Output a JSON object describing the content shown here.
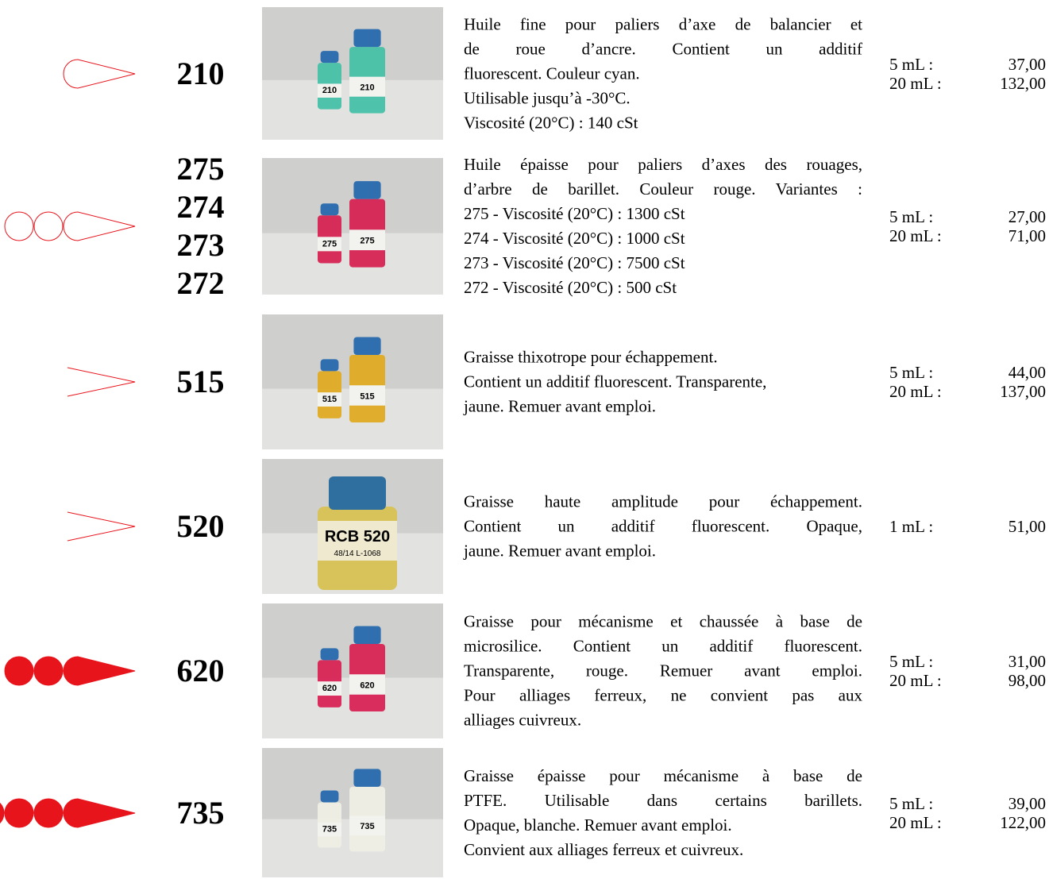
{
  "products": [
    {
      "codes": [
        "210"
      ],
      "photo_labels": [
        "210",
        "210"
      ],
      "description": [
        "Huile fine pour paliers d’axe de balancier et",
        "de roue d’ancre. Contient un additif",
        "fluorescent. Couleur cyan.",
        "Utilisable jusqu’à -30°C.",
        "Viscosité (20°C) : 140 cSt"
      ],
      "prices": [
        {
          "qty": "5 mL :",
          "price": "37,00"
        },
        {
          "qty": "20 mL :",
          "price": "132,00"
        }
      ]
    },
    {
      "codes": [
        "275",
        "274",
        "273",
        "272"
      ],
      "photo_labels": [
        "275",
        "275"
      ],
      "description": [
        "Huile épaisse pour paliers d’axes des rouages,",
        "d’arbre de barillet. Couleur rouge. Variantes :",
        "275 - Viscosité (20°C) : 1300 cSt",
        "274 - Viscosité (20°C) : 1000 cSt",
        "273 - Viscosité (20°C) : 7500 cSt",
        "272 - Viscosité (20°C) : 500 cSt"
      ],
      "prices": [
        {
          "qty": "5 mL :",
          "price": "27,00"
        },
        {
          "qty": "20 mL :",
          "price": "71,00"
        }
      ]
    },
    {
      "codes": [
        "515"
      ],
      "photo_labels": [
        "515",
        "515"
      ],
      "description": [
        "Graisse thixotrope pour échappement.",
        "Contient un additif fluorescent. Transparente,",
        "jaune. Remuer avant emploi."
      ],
      "prices": [
        {
          "qty": "5 mL :",
          "price": "44,00"
        },
        {
          "qty": "20 mL :",
          "price": "137,00"
        }
      ]
    },
    {
      "codes": [
        "520"
      ],
      "photo_labels": [
        "RCB 520",
        "48/14 L-1068"
      ],
      "description": [
        "Graisse haute amplitude pour échappement.",
        "Contient un additif fluorescent. Opaque,",
        "jaune. Remuer avant emploi."
      ],
      "prices": [
        {
          "qty": "1 mL :",
          "price": "51,00"
        }
      ]
    },
    {
      "codes": [
        "620"
      ],
      "photo_labels": [
        "620",
        "620"
      ],
      "description": [
        "Graisse pour mécanisme et chaussée à base de",
        "microsilice. Contient un additif fluorescent.",
        "Transparente, rouge. Remuer avant emploi.",
        "Pour alliages ferreux, ne convient pas aux",
        "alliages cuivreux."
      ],
      "prices": [
        {
          "qty": "5 mL :",
          "price": "31,00"
        },
        {
          "qty": "20 mL :",
          "price": "98,00"
        }
      ]
    },
    {
      "codes": [
        "735"
      ],
      "photo_labels": [
        "735",
        "735"
      ],
      "description": [
        "Graisse épaisse pour mécanisme à base de",
        "PTFE. Utilisable dans certains barillets.",
        "Opaque, blanche. Remuer avant emploi.",
        "Convient aux alliages ferreux et cuivreux."
      ],
      "prices": [
        {
          "qty": "5 mL :",
          "price": "39,00"
        },
        {
          "qty": "20 mL :",
          "price": "122,00"
        }
      ]
    }
  ]
}
